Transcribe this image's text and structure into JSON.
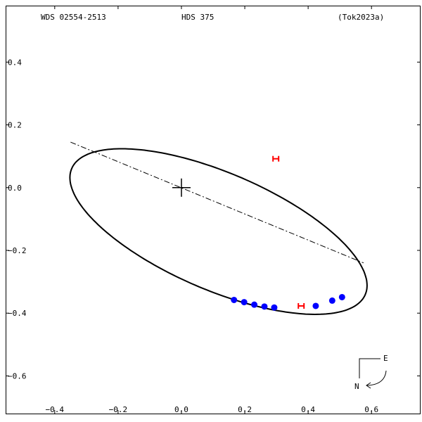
{
  "header": {
    "wds": "WDS 02554-2513",
    "discoverer": "HDS 375",
    "reference": "(Tok2023a)"
  },
  "compass": {
    "east": "E",
    "north": "N"
  },
  "colors": {
    "orbit": "#000000",
    "observation": "#0000ff",
    "speckle": "#ff0000"
  },
  "chart_data": {
    "type": "scatter",
    "title": "",
    "xlabel": "",
    "ylabel": "",
    "xlim": [
      -0.555,
      0.755
    ],
    "ylim": [
      -0.72,
      0.58
    ],
    "x_ticks": [
      {
        "value": -0.4,
        "label": "−0.4"
      },
      {
        "value": -0.2,
        "label": "−0.2"
      },
      {
        "value": 0.0,
        "label": "0.0"
      },
      {
        "value": 0.2,
        "label": "0.2"
      },
      {
        "value": 0.4,
        "label": "0.4"
      },
      {
        "value": 0.6,
        "label": "0.6"
      }
    ],
    "y_ticks": [
      {
        "value": 0.4,
        "label": "0.4"
      },
      {
        "value": 0.2,
        "label": "0.2"
      },
      {
        "value": 0.0,
        "label": "0.0"
      },
      {
        "value": -0.2,
        "label": "−0.2"
      },
      {
        "value": -0.4,
        "label": "−0.4"
      },
      {
        "value": -0.6,
        "label": "−0.6"
      }
    ],
    "orbit_ellipse": {
      "center": [
        0.117,
        -0.14
      ],
      "semi_major": 0.505,
      "semi_minor": 0.186,
      "rotation_deg": -23.5
    },
    "line_of_nodes": [
      [
        -0.35,
        0.145
      ],
      [
        0.575,
        -0.24
      ]
    ],
    "primary": [
      0.0,
      0.0
    ],
    "observations": [
      [
        0.166,
        -0.358
      ],
      [
        0.198,
        -0.365
      ],
      [
        0.23,
        -0.373
      ],
      [
        0.262,
        -0.379
      ],
      [
        0.293,
        -0.382
      ],
      [
        0.424,
        -0.377
      ],
      [
        0.476,
        -0.36
      ],
      [
        0.507,
        -0.349
      ]
    ],
    "speckle_points": [
      [
        0.298,
        0.092
      ],
      [
        0.378,
        -0.377
      ]
    ]
  }
}
